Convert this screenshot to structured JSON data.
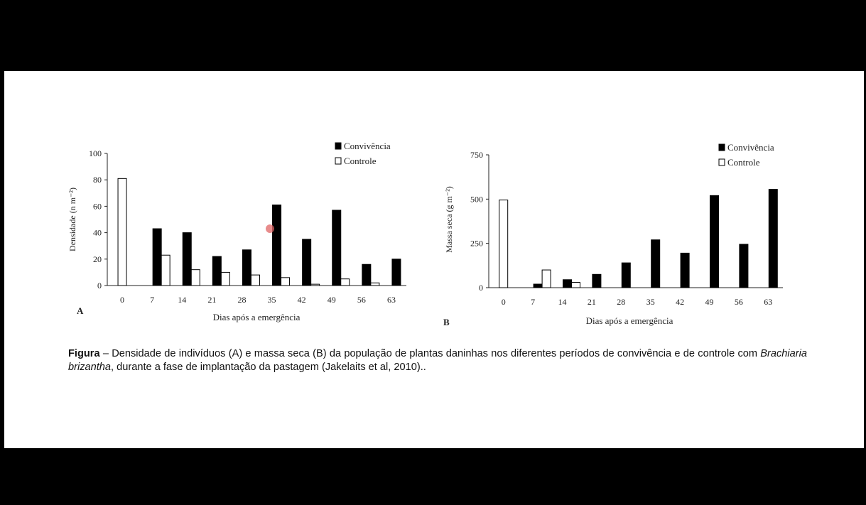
{
  "chart_data": [
    {
      "type": "bar",
      "panel_label": "A",
      "ylabel": "Densidade (n m⁻²)",
      "xlabel": "Dias após a emergência",
      "ylim": [
        0,
        100
      ],
      "yticks": [
        "0",
        "20",
        "40",
        "60",
        "80",
        "100"
      ],
      "categories": [
        "0",
        "7",
        "14",
        "21",
        "28",
        "35",
        "42",
        "49",
        "56",
        "63"
      ],
      "legend_position": "top-right",
      "series": [
        {
          "name": "Convivência",
          "color": "#000000",
          "values": [
            null,
            43,
            40,
            22,
            27,
            61,
            35,
            57,
            16,
            20
          ]
        },
        {
          "name": "Controle",
          "color": "#ffffff",
          "values": [
            81,
            23,
            12,
            10,
            8,
            6,
            1,
            5,
            2,
            null
          ]
        }
      ]
    },
    {
      "type": "bar",
      "panel_label": "B",
      "ylabel": "Massa seca (g m⁻²)",
      "xlabel": "Dias após a emergência",
      "ylim": [
        0,
        750
      ],
      "yticks": [
        "0",
        "250",
        "500",
        "750"
      ],
      "categories": [
        "0",
        "7",
        "14",
        "21",
        "28",
        "35",
        "42",
        "49",
        "56",
        "63"
      ],
      "legend_position": "top-right",
      "series": [
        {
          "name": "Convivência",
          "color": "#000000",
          "values": [
            null,
            20,
            45,
            75,
            140,
            270,
            195,
            520,
            245,
            555
          ]
        },
        {
          "name": "Controle",
          "color": "#ffffff",
          "values": [
            495,
            100,
            30,
            null,
            null,
            null,
            null,
            null,
            null,
            null
          ]
        }
      ]
    }
  ],
  "caption": {
    "label": "Figura",
    "part1": " – Densidade de indivíduos (A) e massa seca (B) da população de plantas daninhas nos diferentes períodos de convivência e de controle com ",
    "species": "Brachiaria brizantha",
    "part2": ", durante a fase de implantação da pastagem (Jakelaits et al, 2010).."
  },
  "pointer_color": "#e06666"
}
